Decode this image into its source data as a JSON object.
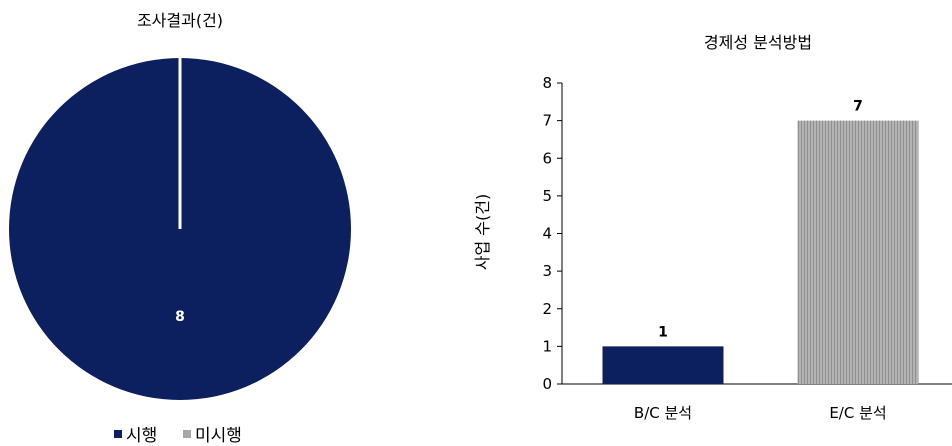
{
  "chart_data": [
    {
      "type": "pie",
      "title": "조사결과(건)",
      "categories": [
        "시행",
        "미시행"
      ],
      "values": [
        8,
        0
      ],
      "data_labels": [
        "8",
        ""
      ],
      "colors": [
        "#0c1f5e",
        "#a6a6a6"
      ],
      "legend": "bottom"
    },
    {
      "type": "bar",
      "title": "경제성 분석방법",
      "categories": [
        "B/C 분석",
        "E/C 분석"
      ],
      "values": [
        1,
        7
      ],
      "data_labels": [
        "1",
        "7"
      ],
      "colors": [
        "#0c1f5e",
        "#a6a6a6"
      ],
      "ylabel": "사업 수(건)",
      "ylim": [
        0,
        8
      ],
      "yticks": [
        "0",
        "1",
        "2",
        "3",
        "4",
        "5",
        "6",
        "7",
        "8"
      ],
      "grid": false
    }
  ]
}
